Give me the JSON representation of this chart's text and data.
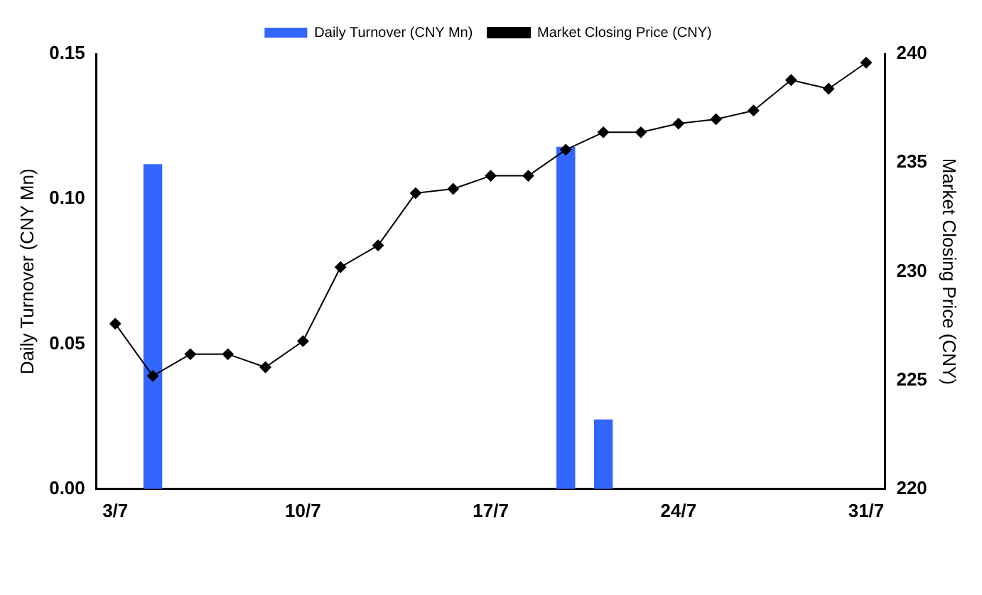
{
  "chart_data": {
    "type": "bar",
    "categories": [
      "3/7",
      null,
      null,
      null,
      null,
      "10/7",
      null,
      null,
      null,
      null,
      "17/7",
      null,
      null,
      null,
      null,
      "24/7",
      null,
      null,
      null,
      null,
      "31/7"
    ],
    "series": [
      {
        "name": "Daily Turnover (CNY Mn)",
        "color": "#3366ff",
        "values": [
          null,
          0.112,
          null,
          null,
          null,
          null,
          null,
          null,
          null,
          null,
          null,
          null,
          0.118,
          0.024,
          null,
          null,
          null,
          null,
          null,
          null,
          null
        ]
      },
      {
        "name": "Market Closing Price (CNY)",
        "type": "line",
        "axis": "y2",
        "color": "#000000",
        "marker": "diamond",
        "values": [
          227.6,
          225.2,
          226.2,
          226.2,
          225.6,
          226.8,
          230.2,
          231.2,
          233.6,
          233.8,
          234.4,
          234.4,
          235.6,
          236.4,
          236.4,
          236.8,
          237.0,
          237.4,
          238.8,
          238.4,
          239.6
        ]
      }
    ],
    "ylabel": "Daily Turnover (CNY Mn)",
    "y2label": "Market Closing Price (CNY)",
    "ylim": [
      0,
      0.15
    ],
    "yticks": [
      {
        "value": 0,
        "label": "0.00"
      },
      {
        "value": 0.05,
        "label": "0.05"
      },
      {
        "value": 0.1,
        "label": "0.10"
      },
      {
        "value": 0.15,
        "label": "0.15"
      }
    ],
    "y2lim": [
      220,
      240
    ],
    "y2ticks": [
      220,
      225,
      230,
      235,
      240
    ],
    "grid": false,
    "legend": "top"
  }
}
